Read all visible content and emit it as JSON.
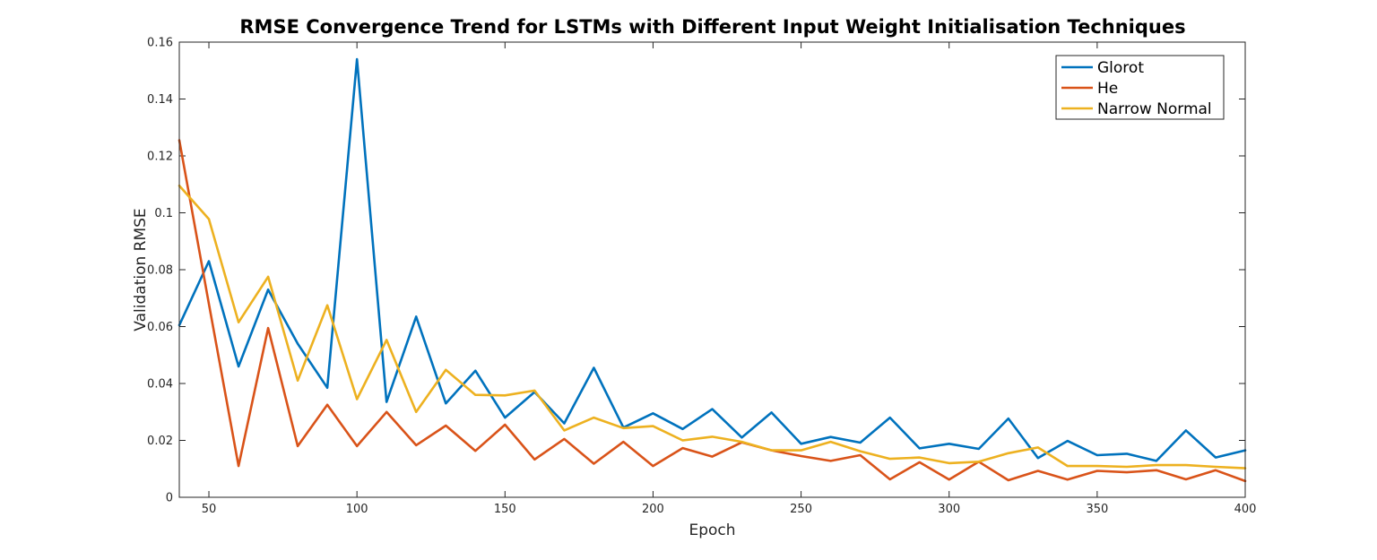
{
  "chart_data": {
    "type": "line",
    "title": "RMSE Convergence Trend for LSTMs with Different Input Weight Initialisation Techniques",
    "xlabel": "Epoch",
    "ylabel": "Validation RMSE",
    "xlim": [
      40,
      400
    ],
    "ylim": [
      0,
      0.16
    ],
    "xticks": [
      50,
      100,
      150,
      200,
      250,
      300,
      350,
      400
    ],
    "yticks": [
      0,
      0.02,
      0.04,
      0.06,
      0.08,
      0.1,
      0.12,
      0.14,
      0.16
    ],
    "ytick_labels": [
      "0",
      "0.02",
      "0.04",
      "0.06",
      "0.08",
      "0.1",
      "0.12",
      "0.14",
      "0.16"
    ],
    "grid": false,
    "legend_position": "top-right",
    "x": [
      40,
      50,
      60,
      70,
      80,
      90,
      100,
      110,
      120,
      130,
      140,
      150,
      160,
      170,
      180,
      190,
      200,
      210,
      220,
      230,
      240,
      250,
      260,
      270,
      280,
      290,
      300,
      310,
      320,
      330,
      340,
      350,
      360,
      370,
      380,
      390,
      400
    ],
    "series": [
      {
        "name": "Glorot",
        "color": "#0072BD",
        "values": [
          0.0605,
          0.083,
          0.046,
          0.073,
          0.054,
          0.0385,
          0.154,
          0.0335,
          0.0635,
          0.033,
          0.0445,
          0.028,
          0.037,
          0.026,
          0.0455,
          0.0245,
          0.0295,
          0.024,
          0.031,
          0.021,
          0.0298,
          0.0188,
          0.0212,
          0.0192,
          0.028,
          0.0172,
          0.0188,
          0.017,
          0.0277,
          0.0138,
          0.0198,
          0.0148,
          0.0153,
          0.0128,
          0.0235,
          0.014,
          0.0165
        ]
      },
      {
        "name": "He",
        "color": "#D95319",
        "values": [
          0.1255,
          0.068,
          0.011,
          0.0595,
          0.018,
          0.0325,
          0.018,
          0.03,
          0.0183,
          0.0252,
          0.0163,
          0.0255,
          0.0133,
          0.0205,
          0.0118,
          0.0195,
          0.011,
          0.0173,
          0.0143,
          0.0193,
          0.0165,
          0.0145,
          0.0128,
          0.0148,
          0.0063,
          0.0123,
          0.0062,
          0.0125,
          0.006,
          0.0093,
          0.0062,
          0.0093,
          0.0088,
          0.0095,
          0.0063,
          0.0095,
          0.0057
        ]
      },
      {
        "name": "Narrow Normal",
        "color": "#EDB120",
        "values": [
          0.1095,
          0.0978,
          0.0615,
          0.0775,
          0.041,
          0.0675,
          0.0345,
          0.0553,
          0.03,
          0.0448,
          0.036,
          0.0358,
          0.0375,
          0.0235,
          0.028,
          0.0243,
          0.025,
          0.02,
          0.0213,
          0.0195,
          0.0165,
          0.0165,
          0.0195,
          0.0162,
          0.0135,
          0.014,
          0.012,
          0.0125,
          0.0155,
          0.0175,
          0.011,
          0.011,
          0.0107,
          0.0113,
          0.0113,
          0.0107,
          0.0102
        ]
      }
    ]
  }
}
